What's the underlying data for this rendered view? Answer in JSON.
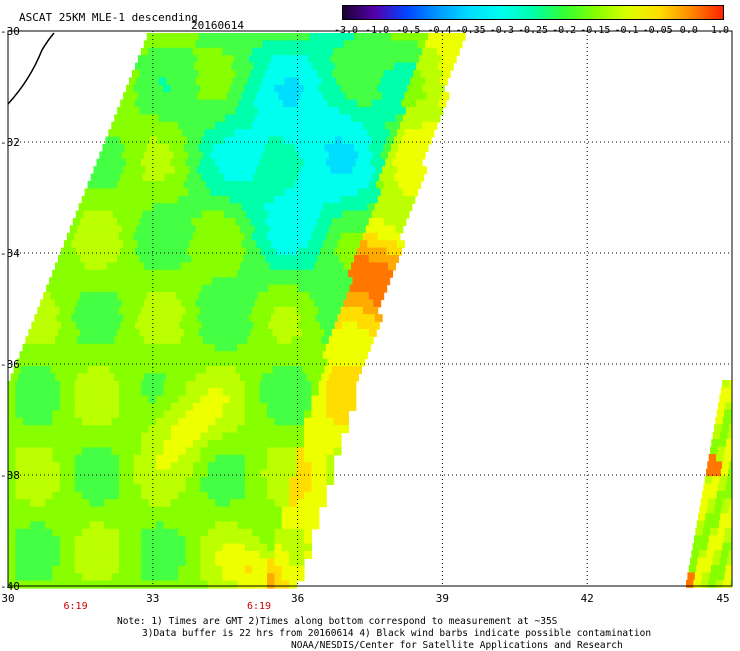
{
  "header": {
    "title": "ASCAT 25KM MLE-1 descending",
    "date": "20160614"
  },
  "colorbar": {
    "labels": [
      "-3.0",
      "-1.0",
      "-0.5",
      "-0.4",
      "-0.35",
      "-0.3",
      "-0.25",
      "-0.2",
      "-0.15",
      "-0.1",
      "-0.05",
      "0.0",
      "1.0"
    ],
    "colors": [
      "#1a0033",
      "#5500aa",
      "#0044ff",
      "#0099ff",
      "#00ddff",
      "#00ffee",
      "#00ffaa",
      "#33ff33",
      "#88ff00",
      "#ddff00",
      "#ffdd00",
      "#ff8800",
      "#ff2200"
    ]
  },
  "map": {
    "lon_ticks": [
      "30",
      "33",
      "36",
      "39",
      "42",
      "45"
    ],
    "lat_ticks": [
      "-30",
      "-32",
      "-34",
      "-36",
      "-38",
      "-40"
    ],
    "lon_range": [
      30,
      45
    ],
    "lat_range": [
      -40,
      -30
    ],
    "time_labels": [
      {
        "lon": 31.4,
        "text": "6:19"
      },
      {
        "lon": 35.2,
        "text": "6:19"
      }
    ],
    "time_label_color": "#cc0000",
    "grid": "dotted"
  },
  "notes": {
    "line1": "Note: 1) Times are GMT 2)Times along bottom correspond to measurement at ~35S",
    "line2": "3)Data buffer is 22 hrs from 20160614 4) Black wind barbs indicate possible contamination",
    "line3": "NOAA/NESDIS/Center for Satellite Applications and Research"
  }
}
